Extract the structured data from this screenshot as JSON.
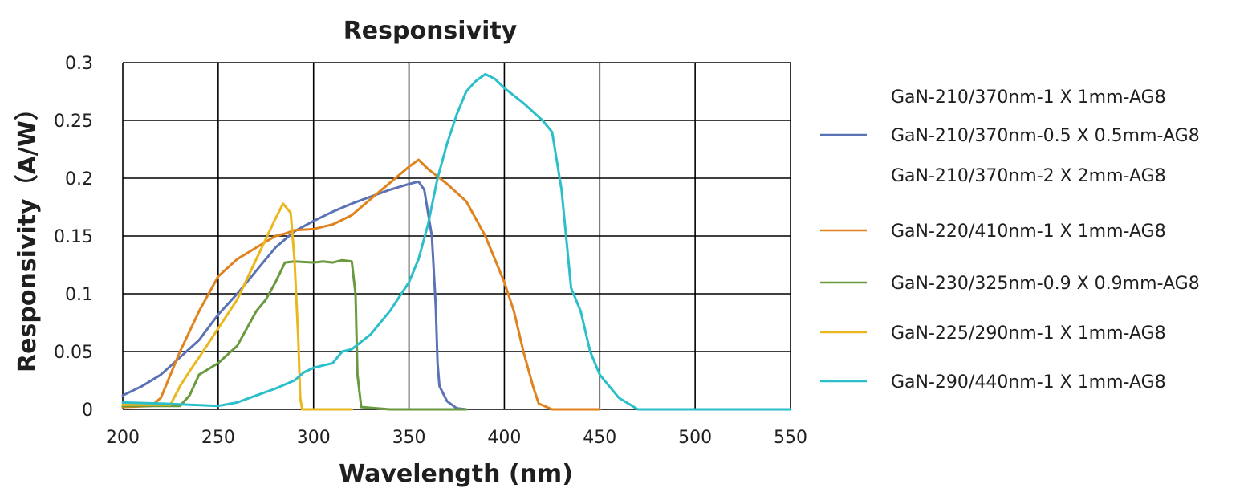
{
  "chart_data": {
    "type": "line",
    "title": "Responsivity",
    "xlabel": "Wavelength (nm)",
    "ylabel": "Responsivity（A/W）",
    "xlim": [
      200,
      550
    ],
    "ylim": [
      0,
      0.3
    ],
    "x_ticks": [
      "200",
      "250",
      "300",
      "350",
      "400",
      "450",
      "500",
      "550"
    ],
    "y_ticks": [
      "0",
      "0.05",
      "0.1",
      "0.15",
      "0.2",
      "0.25",
      "0.3"
    ],
    "grid": true,
    "legend_position": "right",
    "series": [
      {
        "name": "GaN-210/370nm-1 X 1mm-AG8",
        "color": "",
        "values": []
      },
      {
        "name": "GaN-210/370nm-0.5 X 0.5mm-AG8",
        "color": "#5b72b5",
        "values": [
          [
            200,
            0.012
          ],
          [
            210,
            0.02
          ],
          [
            220,
            0.03
          ],
          [
            230,
            0.045
          ],
          [
            240,
            0.06
          ],
          [
            250,
            0.082
          ],
          [
            260,
            0.1
          ],
          [
            270,
            0.12
          ],
          [
            280,
            0.14
          ],
          [
            290,
            0.154
          ],
          [
            300,
            0.163
          ],
          [
            310,
            0.171
          ],
          [
            320,
            0.178
          ],
          [
            330,
            0.184
          ],
          [
            340,
            0.19
          ],
          [
            350,
            0.195
          ],
          [
            355,
            0.197
          ],
          [
            358,
            0.19
          ],
          [
            362,
            0.15
          ],
          [
            364,
            0.09
          ],
          [
            365,
            0.04
          ],
          [
            366,
            0.02
          ],
          [
            370,
            0.007
          ],
          [
            375,
            0.001
          ],
          [
            380,
            0.0
          ]
        ]
      },
      {
        "name": "GaN-210/370nm-2 X 2mm-AG8",
        "color": "",
        "values": []
      },
      {
        "name": "GaN-220/410nm-1 X 1mm-AG8",
        "color": "#e0821e",
        "values": [
          [
            200,
            0.002
          ],
          [
            215,
            0.003
          ],
          [
            220,
            0.01
          ],
          [
            230,
            0.05
          ],
          [
            240,
            0.085
          ],
          [
            250,
            0.115
          ],
          [
            260,
            0.13
          ],
          [
            270,
            0.14
          ],
          [
            280,
            0.15
          ],
          [
            285,
            0.152
          ],
          [
            290,
            0.155
          ],
          [
            300,
            0.156
          ],
          [
            310,
            0.16
          ],
          [
            320,
            0.168
          ],
          [
            330,
            0.182
          ],
          [
            340,
            0.196
          ],
          [
            350,
            0.21
          ],
          [
            355,
            0.216
          ],
          [
            360,
            0.208
          ],
          [
            370,
            0.195
          ],
          [
            380,
            0.18
          ],
          [
            390,
            0.15
          ],
          [
            400,
            0.11
          ],
          [
            405,
            0.085
          ],
          [
            410,
            0.05
          ],
          [
            415,
            0.02
          ],
          [
            418,
            0.005
          ],
          [
            425,
            0.0
          ],
          [
            450,
            0.0
          ]
        ]
      },
      {
        "name": "GaN-230/325nm-0.9 X 0.9mm-AG8",
        "color": "#6a9a3f",
        "values": [
          [
            200,
            0.003
          ],
          [
            230,
            0.003
          ],
          [
            235,
            0.012
          ],
          [
            240,
            0.03
          ],
          [
            250,
            0.04
          ],
          [
            260,
            0.055
          ],
          [
            270,
            0.085
          ],
          [
            275,
            0.095
          ],
          [
            280,
            0.11
          ],
          [
            285,
            0.127
          ],
          [
            290,
            0.128
          ],
          [
            300,
            0.127
          ],
          [
            305,
            0.128
          ],
          [
            310,
            0.127
          ],
          [
            315,
            0.129
          ],
          [
            320,
            0.128
          ],
          [
            322,
            0.1
          ],
          [
            323,
            0.03
          ],
          [
            325,
            0.002
          ],
          [
            340,
            0.0
          ],
          [
            380,
            0.0
          ]
        ]
      },
      {
        "name": "GaN-225/290nm-1 X 1mm-AG8",
        "color": "#eab81e",
        "values": [
          [
            200,
            0.004
          ],
          [
            225,
            0.004
          ],
          [
            230,
            0.02
          ],
          [
            235,
            0.033
          ],
          [
            240,
            0.045
          ],
          [
            250,
            0.07
          ],
          [
            260,
            0.095
          ],
          [
            270,
            0.13
          ],
          [
            280,
            0.165
          ],
          [
            284,
            0.178
          ],
          [
            288,
            0.17
          ],
          [
            290,
            0.13
          ],
          [
            292,
            0.06
          ],
          [
            293,
            0.01
          ],
          [
            294,
            0.0
          ],
          [
            320,
            0.0
          ]
        ]
      },
      {
        "name": "GaN-290/440nm-1 X 1mm-AG8",
        "color": "#2bbfca",
        "values": [
          [
            200,
            0.006
          ],
          [
            220,
            0.005
          ],
          [
            235,
            0.004
          ],
          [
            250,
            0.003
          ],
          [
            260,
            0.006
          ],
          [
            270,
            0.012
          ],
          [
            280,
            0.018
          ],
          [
            290,
            0.025
          ],
          [
            295,
            0.032
          ],
          [
            300,
            0.036
          ],
          [
            310,
            0.04
          ],
          [
            315,
            0.05
          ],
          [
            320,
            0.052
          ],
          [
            330,
            0.065
          ],
          [
            340,
            0.085
          ],
          [
            350,
            0.11
          ],
          [
            355,
            0.13
          ],
          [
            360,
            0.16
          ],
          [
            365,
            0.2
          ],
          [
            370,
            0.23
          ],
          [
            375,
            0.255
          ],
          [
            380,
            0.275
          ],
          [
            385,
            0.284
          ],
          [
            390,
            0.29
          ],
          [
            395,
            0.286
          ],
          [
            400,
            0.278
          ],
          [
            410,
            0.265
          ],
          [
            420,
            0.25
          ],
          [
            425,
            0.24
          ],
          [
            430,
            0.19
          ],
          [
            435,
            0.105
          ],
          [
            440,
            0.085
          ],
          [
            445,
            0.05
          ],
          [
            450,
            0.03
          ],
          [
            460,
            0.01
          ],
          [
            470,
            0.0
          ],
          [
            480,
            0.0
          ],
          [
            550,
            0.0
          ]
        ]
      }
    ]
  }
}
